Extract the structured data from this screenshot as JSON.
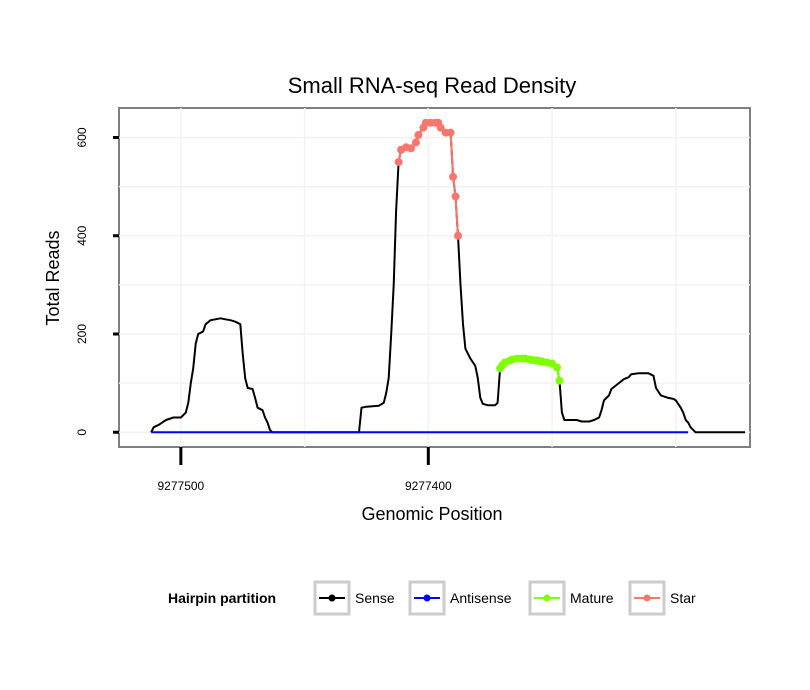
{
  "chart_data": {
    "type": "line",
    "title": "Small RNA-seq Read Density",
    "xlabel": "Genomic Position",
    "ylabel": "Total Reads",
    "x_reversed": true,
    "xlim": [
      9277270,
      9277525
    ],
    "ylim": [
      -30,
      660
    ],
    "xticks": [
      9277500,
      9277400
    ],
    "xtick_labels": [
      "9277500",
      "9277400"
    ],
    "yticks": [
      0,
      200,
      400,
      600
    ],
    "ytick_labels": [
      "0",
      "200",
      "400",
      "600"
    ],
    "legend": {
      "title": "Hairpin partition",
      "position": "bottom",
      "entries": [
        {
          "label": "Sense",
          "color": "#000000"
        },
        {
          "label": "Antisense",
          "color": "#0000ff"
        },
        {
          "label": "Mature",
          "color": "#7fff00"
        },
        {
          "label": "Star",
          "color": "#f8766d"
        }
      ]
    },
    "series": [
      {
        "name": "Sense",
        "color": "#000000",
        "points": [
          [
            9277512,
            0
          ],
          [
            9277511,
            10
          ],
          [
            9277509,
            15
          ],
          [
            9277506,
            25
          ],
          [
            9277503,
            30
          ],
          [
            9277500,
            30
          ],
          [
            9277498,
            40
          ],
          [
            9277497,
            60
          ],
          [
            9277496,
            100
          ],
          [
            9277495,
            130
          ],
          [
            9277494,
            180
          ],
          [
            9277493,
            200
          ],
          [
            9277491,
            205
          ],
          [
            9277490,
            220
          ],
          [
            9277488,
            228
          ],
          [
            9277486,
            230
          ],
          [
            9277484,
            232
          ],
          [
            9277482,
            230
          ],
          [
            9277480,
            228
          ],
          [
            9277478,
            225
          ],
          [
            9277476,
            220
          ],
          [
            9277475,
            160
          ],
          [
            9277474,
            110
          ],
          [
            9277473,
            90
          ],
          [
            9277471,
            88
          ],
          [
            9277470,
            70
          ],
          [
            9277469,
            50
          ],
          [
            9277467,
            45
          ],
          [
            9277466,
            30
          ],
          [
            9277465,
            20
          ],
          [
            9277464,
            5
          ],
          [
            9277463,
            0
          ],
          [
            9277456,
            0
          ],
          [
            9277435,
            0
          ],
          [
            9277428,
            0
          ],
          [
            9277427,
            50
          ],
          [
            9277425,
            52
          ],
          [
            9277420,
            54
          ],
          [
            9277418,
            60
          ],
          [
            9277417,
            80
          ],
          [
            9277416,
            110
          ],
          [
            9277415,
            200
          ],
          [
            9277414,
            300
          ],
          [
            9277413,
            450
          ],
          [
            9277412,
            550
          ],
          [
            9277411,
            575
          ],
          [
            9277409,
            580
          ],
          [
            9277407,
            578
          ],
          [
            9277405,
            590
          ],
          [
            9277404,
            605
          ],
          [
            9277402,
            620
          ],
          [
            9277401,
            630
          ],
          [
            9277399,
            630
          ],
          [
            9277396,
            630
          ],
          [
            9277395,
            620
          ],
          [
            9277393,
            610
          ],
          [
            9277391,
            610
          ],
          [
            9277390,
            520
          ],
          [
            9277389,
            480
          ],
          [
            9277388,
            400
          ],
          [
            9277387,
            300
          ],
          [
            9277386,
            220
          ],
          [
            9277385,
            170
          ],
          [
            9277383,
            150
          ],
          [
            9277381,
            135
          ],
          [
            9277380,
            110
          ],
          [
            9277379,
            70
          ],
          [
            9277378,
            58
          ],
          [
            9277376,
            55
          ],
          [
            9277373,
            55
          ],
          [
            9277372,
            60
          ],
          [
            9277371,
            130
          ],
          [
            9277370,
            137
          ],
          [
            9277369,
            142
          ],
          [
            9277367,
            146
          ],
          [
            9277366,
            148
          ],
          [
            9277364,
            150
          ],
          [
            9277361,
            150
          ],
          [
            9277359,
            148
          ],
          [
            9277356,
            146
          ],
          [
            9277354,
            144
          ],
          [
            9277352,
            142
          ],
          [
            9277350,
            140
          ],
          [
            9277348,
            132
          ],
          [
            9277347,
            105
          ],
          [
            9277346,
            40
          ],
          [
            9277345,
            25
          ],
          [
            9277343,
            25
          ],
          [
            9277340,
            25
          ],
          [
            9277338,
            22
          ],
          [
            9277335,
            22
          ],
          [
            9277333,
            25
          ],
          [
            9277331,
            30
          ],
          [
            9277330,
            45
          ],
          [
            9277329,
            65
          ],
          [
            9277327,
            75
          ],
          [
            9277326,
            88
          ],
          [
            9277323,
            100
          ],
          [
            9277321,
            108
          ],
          [
            9277319,
            112
          ],
          [
            9277318,
            118
          ],
          [
            9277315,
            120
          ],
          [
            9277311,
            120
          ],
          [
            9277309,
            115
          ],
          [
            9277308,
            90
          ],
          [
            9277306,
            75
          ],
          [
            9277303,
            70
          ],
          [
            9277301,
            68
          ],
          [
            9277300,
            65
          ],
          [
            9277298,
            50
          ],
          [
            9277297,
            40
          ],
          [
            9277296,
            25
          ],
          [
            9277295,
            20
          ],
          [
            9277294,
            10
          ],
          [
            9277293,
            5
          ],
          [
            9277292,
            0
          ],
          [
            9277272,
            0
          ]
        ]
      },
      {
        "name": "Antisense",
        "color": "#0000ff",
        "points": [
          [
            9277512,
            0
          ],
          [
            9277295,
            0
          ]
        ]
      },
      {
        "name": "Mature",
        "color": "#7fff00",
        "points": [
          [
            9277371,
            130
          ],
          [
            9277370,
            137
          ],
          [
            9277369,
            142
          ],
          [
            9277367,
            146
          ],
          [
            9277366,
            148
          ],
          [
            9277364,
            150
          ],
          [
            9277362,
            150
          ],
          [
            9277361,
            150
          ],
          [
            9277359,
            148
          ],
          [
            9277358,
            147
          ],
          [
            9277356,
            146
          ],
          [
            9277355,
            145
          ],
          [
            9277354,
            144
          ],
          [
            9277352,
            142
          ],
          [
            9277350,
            140
          ],
          [
            9277348,
            132
          ],
          [
            9277347,
            105
          ]
        ]
      },
      {
        "name": "Star",
        "color": "#f8766d",
        "points": [
          [
            9277412,
            550
          ],
          [
            9277411,
            575
          ],
          [
            9277409,
            580
          ],
          [
            9277407,
            578
          ],
          [
            9277405,
            590
          ],
          [
            9277404,
            605
          ],
          [
            9277402,
            620
          ],
          [
            9277401,
            630
          ],
          [
            9277399,
            630
          ],
          [
            9277397,
            630
          ],
          [
            9277396,
            630
          ],
          [
            9277395,
            620
          ],
          [
            9277393,
            610
          ],
          [
            9277391,
            610
          ],
          [
            9277390,
            520
          ],
          [
            9277389,
            480
          ],
          [
            9277388,
            400
          ]
        ]
      }
    ]
  }
}
